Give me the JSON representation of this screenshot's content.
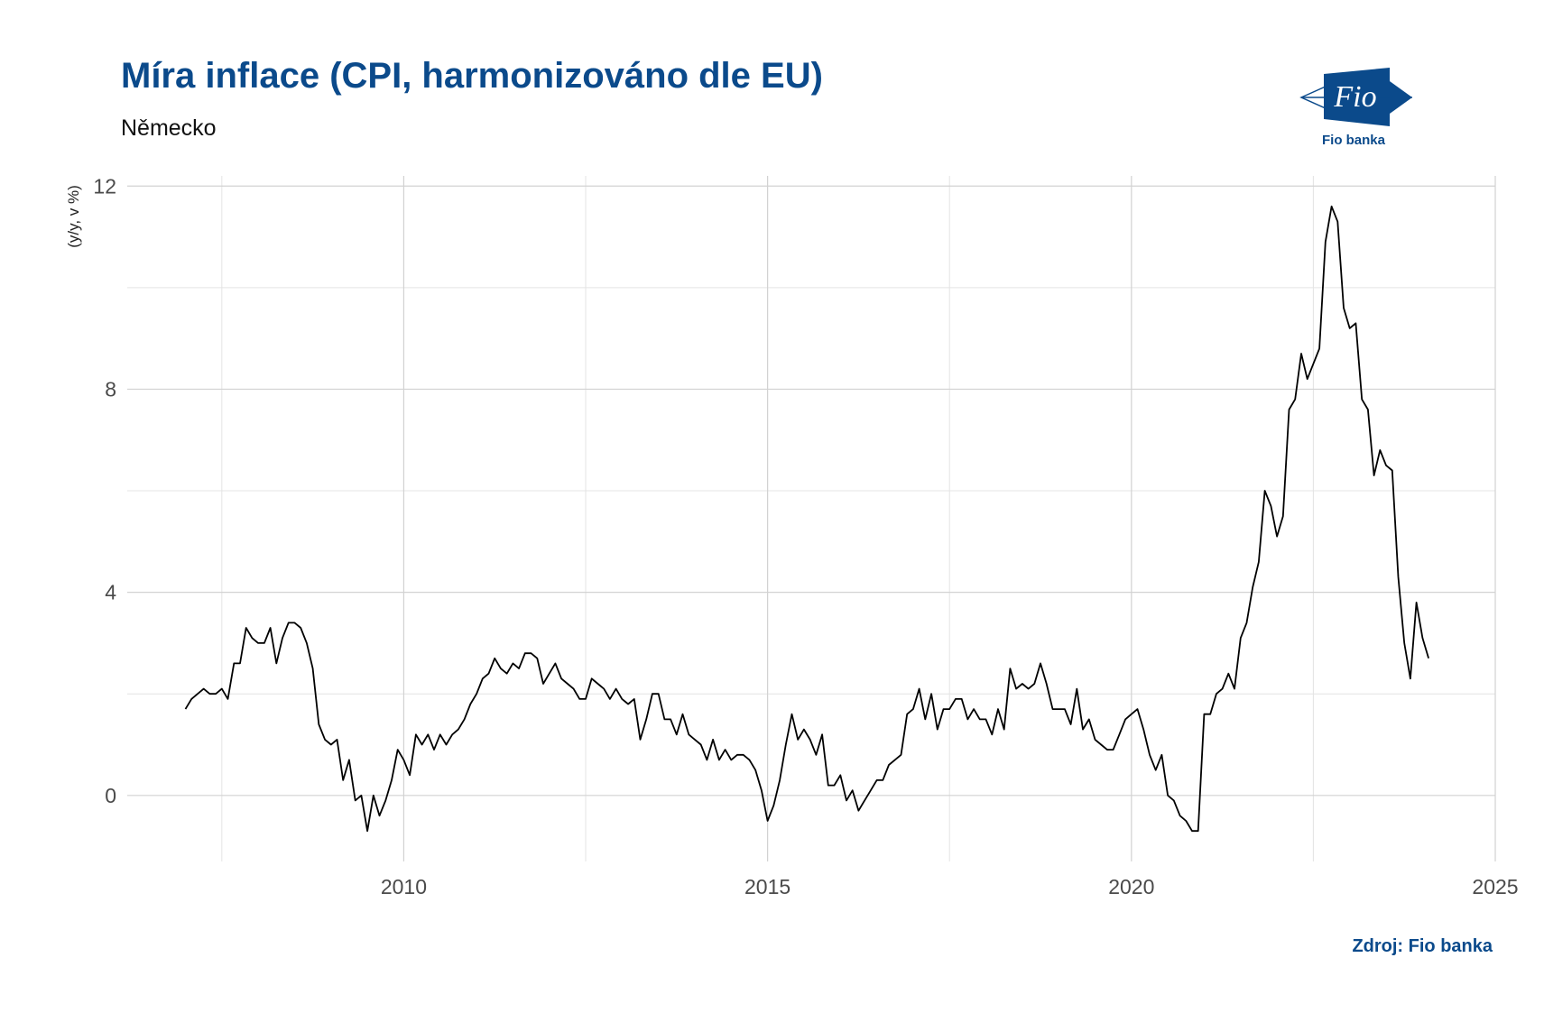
{
  "header": {
    "title": "Míra inflace (CPI, harmonizováno dle EU)",
    "subtitle": "Německo"
  },
  "logo": {
    "text": "Fio",
    "caption": "Fio banka",
    "color": "#0b4a8b"
  },
  "footer": {
    "source": "Zdroj: Fio banka"
  },
  "chart_data": {
    "type": "line",
    "title": "Míra inflace (CPI, harmonizováno dle EU)",
    "subtitle": "Německo",
    "xlabel": "",
    "ylabel": "(y/y, v %)",
    "xlim": [
      2006.2,
      2025
    ],
    "ylim": [
      -1.3,
      12.2
    ],
    "x_ticks": [
      2010,
      2015,
      2020,
      2025
    ],
    "x_tick_labels": [
      "2010",
      "2015",
      "2020",
      "2025"
    ],
    "y_ticks": [
      0,
      4,
      8,
      12
    ],
    "y_tick_labels": [
      "0",
      "4",
      "8",
      "12"
    ],
    "grid": true,
    "line_color": "#000000",
    "series": [
      {
        "start": "2007-01",
        "frequency": "monthly",
        "values": [
          1.7,
          1.9,
          2.0,
          2.1,
          2.0,
          2.0,
          2.1,
          1.9,
          2.6,
          2.6,
          3.3,
          3.1,
          3.0,
          3.0,
          3.3,
          2.6,
          3.1,
          3.4,
          3.4,
          3.3,
          3.0,
          2.5,
          1.4,
          1.1,
          1.0,
          1.1,
          0.3,
          0.7,
          -0.1,
          0.0,
          -0.7,
          0.0,
          -0.4,
          -0.1,
          0.3,
          0.9,
          0.7,
          0.4,
          1.2,
          1.0,
          1.2,
          0.9,
          1.2,
          1.0,
          1.2,
          1.3,
          1.5,
          1.8,
          2.0,
          2.3,
          2.4,
          2.7,
          2.5,
          2.4,
          2.6,
          2.5,
          2.8,
          2.8,
          2.7,
          2.2,
          2.4,
          2.6,
          2.3,
          2.2,
          2.1,
          1.9,
          1.9,
          2.3,
          2.2,
          2.1,
          1.9,
          2.1,
          1.9,
          1.8,
          1.9,
          1.1,
          1.5,
          2.0,
          2.0,
          1.5,
          1.5,
          1.2,
          1.6,
          1.2,
          1.1,
          1.0,
          0.7,
          1.1,
          0.7,
          0.9,
          0.7,
          0.8,
          0.8,
          0.7,
          0.5,
          0.1,
          -0.5,
          -0.2,
          0.3,
          1.0,
          1.6,
          1.1,
          1.3,
          1.1,
          0.8,
          1.2,
          0.2,
          0.2,
          0.4,
          -0.1,
          0.1,
          -0.3,
          -0.1,
          0.1,
          0.3,
          0.3,
          0.6,
          0.7,
          0.8,
          1.6,
          1.7,
          2.1,
          1.5,
          2.0,
          1.3,
          1.7,
          1.7,
          1.9,
          1.9,
          1.5,
          1.7,
          1.5,
          1.5,
          1.2,
          1.7,
          1.3,
          2.5,
          2.1,
          2.2,
          2.1,
          2.2,
          2.6,
          2.2,
          1.7,
          1.7,
          1.7,
          1.4,
          2.1,
          1.3,
          1.5,
          1.1,
          1.0,
          0.9,
          0.9,
          1.2,
          1.5,
          1.6,
          1.7,
          1.3,
          0.8,
          0.5,
          0.8,
          0.0,
          -0.1,
          -0.4,
          -0.5,
          -0.7,
          -0.7,
          1.6,
          1.6,
          2.0,
          2.1,
          2.4,
          2.1,
          3.1,
          3.4,
          4.1,
          4.6,
          6.0,
          5.7,
          5.1,
          5.5,
          7.6,
          7.8,
          8.7,
          8.2,
          8.5,
          8.8,
          10.9,
          11.6,
          11.3,
          9.6,
          9.2,
          9.3,
          7.8,
          7.6,
          6.3,
          6.8,
          6.5,
          6.4,
          4.3,
          3.0,
          2.3,
          3.8,
          3.1,
          2.7
        ]
      }
    ]
  }
}
